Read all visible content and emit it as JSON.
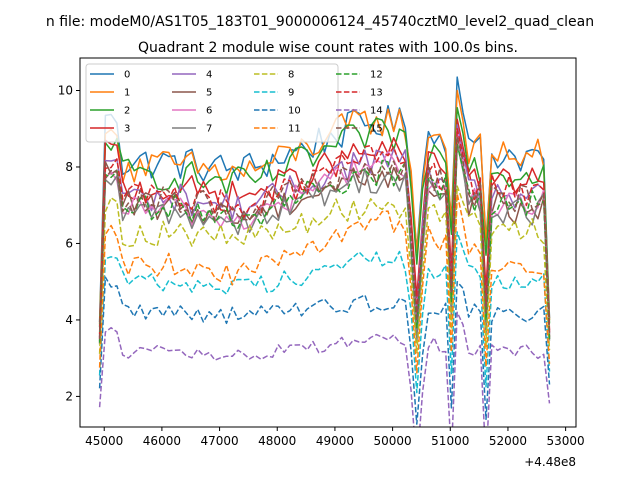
{
  "chart_data": {
    "type": "line",
    "suptitle": "n file: modeM0/AS1T05_183T01_9000006124_45740cztM0_level2_quad_clean",
    "title": "Quadrant 2 module wise count rates with 100.0s bins.",
    "xlabel": "",
    "ylabel": "",
    "x_offset_label": "+4.48e8",
    "xlim": [
      44580,
      53180
    ],
    "ylim": [
      1.2,
      10.85
    ],
    "xticks": [
      45000,
      46000,
      47000,
      48000,
      49000,
      50000,
      51000,
      52000,
      53000
    ],
    "yticks": [
      2,
      4,
      6,
      8,
      10
    ],
    "x_range": [
      44920,
      52720
    ],
    "x_step": 100,
    "legend_position": "upper-left",
    "series": [
      {
        "name": "0",
        "color": "#1f77b4",
        "dash": false,
        "base": 8.1,
        "drift": 0.06,
        "bump": 0.95,
        "dip": 0.72,
        "early_peak": 9.25,
        "spike": 10.35,
        "end": 8.2
      },
      {
        "name": "1",
        "color": "#ff7f0e",
        "dash": false,
        "base": 8.0,
        "drift": 0.1,
        "bump": 1.05,
        "dip": 0.72,
        "early_peak": 9.0,
        "spike": 10.0,
        "end": 8.0
      },
      {
        "name": "2",
        "color": "#2ca02c",
        "dash": false,
        "base": 7.8,
        "drift": 0.0,
        "bump": 1.05,
        "dip": 0.7,
        "early_peak": 8.6,
        "spike": 9.55,
        "end": 8.05
      },
      {
        "name": "3",
        "color": "#d62728",
        "dash": false,
        "base": 7.4,
        "drift": 0.05,
        "bump": 0.9,
        "dip": 0.62,
        "early_peak": 8.5,
        "spike": 9.25,
        "end": 7.6
      },
      {
        "name": "4",
        "color": "#9467bd",
        "dash": false,
        "base": 7.2,
        "drift": 0.0,
        "bump": 1.0,
        "dip": 0.58,
        "early_peak": 8.2,
        "spike": 9.1,
        "end": 7.4
      },
      {
        "name": "5",
        "color": "#8c564b",
        "dash": false,
        "base": 7.0,
        "drift": -0.05,
        "bump": 0.9,
        "dip": 0.55,
        "early_peak": 8.0,
        "spike": 8.85,
        "end": 7.2
      },
      {
        "name": "6",
        "color": "#e377c2",
        "dash": false,
        "base": 6.9,
        "drift": 0.0,
        "bump": 1.2,
        "dip": 0.52,
        "early_peak": 7.8,
        "spike": 9.0,
        "end": 7.4
      },
      {
        "name": "7",
        "color": "#7f7f7f",
        "dash": false,
        "base": 6.8,
        "drift": 0.0,
        "bump": 0.9,
        "dip": 0.5,
        "early_peak": 7.6,
        "spike": 8.6,
        "end": 7.3
      },
      {
        "name": "8",
        "color": "#bcbd22",
        "dash": true,
        "base": 6.25,
        "drift": 0.05,
        "bump": 0.7,
        "dip": 0.5,
        "early_peak": 7.0,
        "spike": 7.5,
        "end": 6.0
      },
      {
        "name": "9",
        "color": "#17becf",
        "dash": true,
        "base": 5.0,
        "drift": 0.0,
        "bump": 0.6,
        "dip": 0.42,
        "early_peak": 5.6,
        "spike": 6.3,
        "end": 5.2
      },
      {
        "name": "10",
        "color": "#1f77b4",
        "dash": true,
        "base": 4.25,
        "drift": -0.05,
        "bump": 0.3,
        "dip": 0.3,
        "early_peak": 4.95,
        "spike": 5.0,
        "end": 4.35
      },
      {
        "name": "11",
        "color": "#ff7f0e",
        "dash": true,
        "base": 5.45,
        "drift": 0.0,
        "bump": 1.1,
        "dip": 0.48,
        "early_peak": 6.3,
        "spike": 7.3,
        "end": 5.2
      },
      {
        "name": "12",
        "color": "#2ca02c",
        "dash": true,
        "base": 6.9,
        "drift": 0.05,
        "bump": 0.9,
        "dip": 0.55,
        "early_peak": 7.7,
        "spike": 8.6,
        "end": 7.1
      },
      {
        "name": "13",
        "color": "#d62728",
        "dash": true,
        "base": 7.2,
        "drift": 0.05,
        "bump": 0.9,
        "dip": 0.58,
        "early_peak": 8.1,
        "spike": 9.0,
        "end": 7.4
      },
      {
        "name": "14",
        "color": "#9467bd",
        "dash": true,
        "base": 3.15,
        "drift": 0.0,
        "bump": 0.35,
        "dip": 0.05,
        "early_peak": 3.65,
        "spike": 4.2,
        "end": 3.1
      },
      {
        "name": "15",
        "color": "#8c564b",
        "dash": true,
        "base": 7.1,
        "drift": 0.0,
        "bump": 0.9,
        "dip": 0.56,
        "early_peak": 7.9,
        "spike": 8.8,
        "end": 7.3
      }
    ]
  }
}
